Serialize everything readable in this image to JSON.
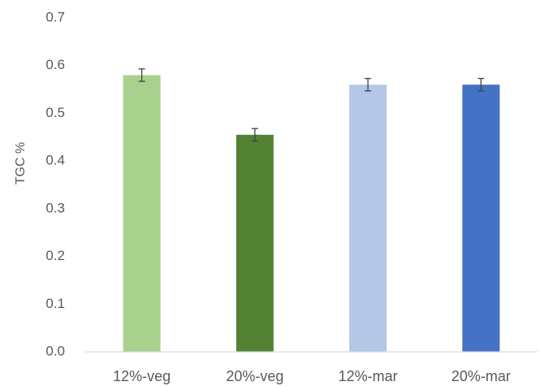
{
  "chart_data": {
    "type": "bar",
    "title": "",
    "xlabel": "",
    "ylabel": "TGC %",
    "ylim": [
      0,
      0.7
    ],
    "yticks": [
      "0.0",
      "0.1",
      "0.2",
      "0.3",
      "0.4",
      "0.5",
      "0.6",
      "0.7"
    ],
    "grid": false,
    "legend": "none",
    "categories": [
      "12%-veg",
      "20%-veg",
      "12%-mar",
      "20%-mar"
    ],
    "values": [
      0.58,
      0.455,
      0.56,
      0.56
    ],
    "error": [
      0.013,
      0.013,
      0.013,
      0.013
    ],
    "colors": [
      "#a9d18e",
      "#548235",
      "#b4c7e7",
      "#4472c4"
    ],
    "error_color": "#404040",
    "axis_color": "#d9d9d9"
  }
}
